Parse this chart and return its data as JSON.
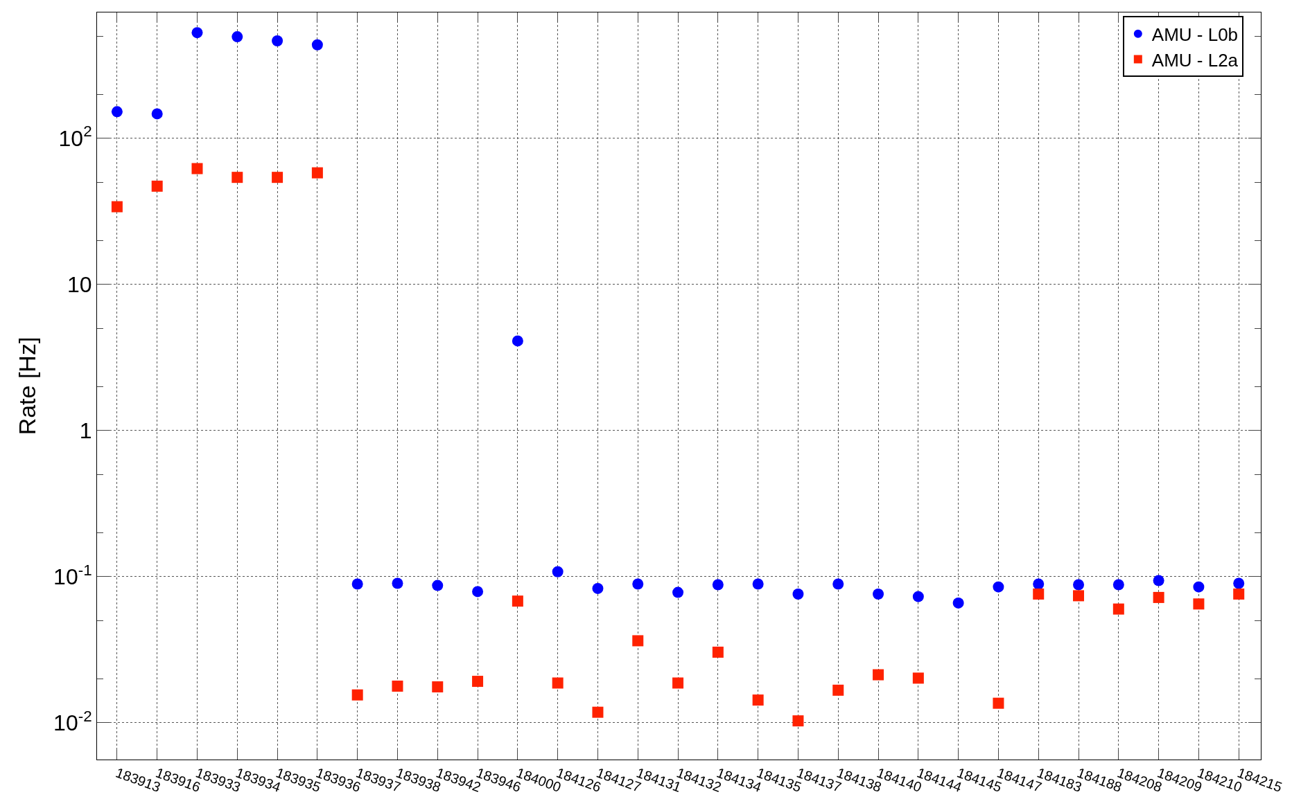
{
  "chart_data": {
    "type": "scatter",
    "ylabel": "Rate [Hz]",
    "categories": [
      "183913",
      "183916",
      "183933",
      "183934",
      "183935",
      "183936",
      "183937",
      "183938",
      "183942",
      "183946",
      "184000",
      "184126",
      "184127",
      "184131",
      "184132",
      "184134",
      "184135",
      "184137",
      "184138",
      "184140",
      "184144",
      "184145",
      "184147",
      "184183",
      "184188",
      "184208",
      "184209",
      "184210",
      "184215"
    ],
    "series": [
      {
        "name": "AMU - L0b",
        "color": "#0000ff",
        "marker": "circle",
        "values": [
          152,
          147,
          528,
          495,
          464,
          436,
          0.089,
          0.09,
          0.087,
          0.079,
          4.1,
          0.108,
          0.083,
          0.089,
          0.078,
          0.088,
          0.089,
          0.076,
          0.089,
          0.076,
          0.073,
          0.066,
          0.085,
          0.089,
          0.088,
          0.088,
          0.094,
          0.085,
          0.09
        ]
      },
      {
        "name": "AMU - L2a",
        "color": "#ff2200",
        "marker": "square",
        "values": [
          34,
          47,
          62,
          54,
          54,
          58,
          0.0155,
          0.0178,
          0.0176,
          0.0192,
          0.068,
          0.0187,
          0.0118,
          0.0364,
          0.0187,
          0.0304,
          0.0143,
          0.0103,
          0.0167,
          0.0213,
          0.0202,
          null,
          0.0136,
          0.076,
          0.074,
          0.06,
          0.072,
          0.065,
          0.076
        ]
      }
    ],
    "log": "y",
    "ylim": [
      0.0056,
      726
    ],
    "yticks": [
      {
        "value": 0.01,
        "label": "10$^{-2}$"
      },
      {
        "value": 0.1,
        "label": "10$^{-1}$"
      },
      1,
      10,
      {
        "value": 100,
        "label": "10$^{2}$"
      }
    ],
    "grid": true,
    "legend": "top right"
  }
}
